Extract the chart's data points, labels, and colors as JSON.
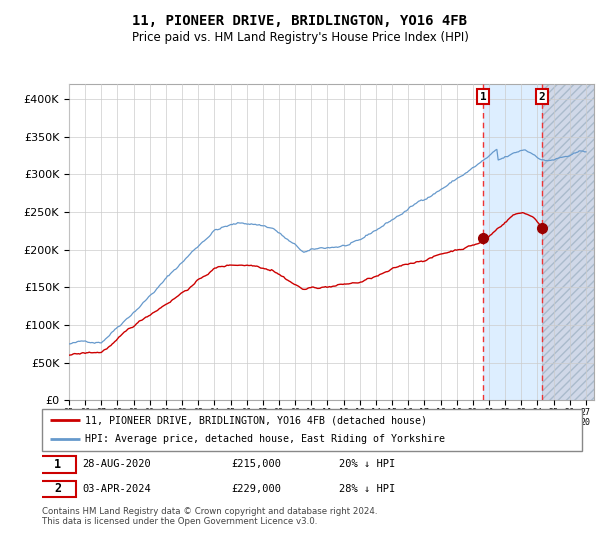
{
  "title": "11, PIONEER DRIVE, BRIDLINGTON, YO16 4FB",
  "subtitle": "Price paid vs. HM Land Registry's House Price Index (HPI)",
  "legend_line1": "11, PIONEER DRIVE, BRIDLINGTON, YO16 4FB (detached house)",
  "legend_line2": "HPI: Average price, detached house, East Riding of Yorkshire",
  "annotation1_date": "28-AUG-2020",
  "annotation1_price": "£215,000",
  "annotation1_hpi": "20% ↓ HPI",
  "annotation2_date": "03-APR-2024",
  "annotation2_price": "£229,000",
  "annotation2_hpi": "28% ↓ HPI",
  "footer": "Contains HM Land Registry data © Crown copyright and database right 2024.\nThis data is licensed under the Open Government Licence v3.0.",
  "hpi_color": "#6699cc",
  "price_color": "#cc0000",
  "dot_color": "#990000",
  "dashed_line_color": "#ee3333",
  "bg_highlight_color": "#ddeeff",
  "hatch_bg_color": "#d0d8e8",
  "grid_color": "#cccccc",
  "annotation_box_color": "#cc0000",
  "ylim": [
    0,
    420000
  ],
  "yticks": [
    0,
    50000,
    100000,
    150000,
    200000,
    250000,
    300000,
    350000,
    400000
  ],
  "xlim_start": 1995.0,
  "xlim_end": 2027.5,
  "highlight_start": 2020.65,
  "highlight_end": 2024.3,
  "hatch_start": 2024.3,
  "hatch_end": 2027.5,
  "point1_x": 2020.65,
  "point1_y": 215000,
  "point2_x": 2024.27,
  "point2_y": 229000,
  "xtick_years": [
    1995,
    1996,
    1997,
    1998,
    1999,
    2000,
    2001,
    2002,
    2003,
    2004,
    2005,
    2006,
    2007,
    2008,
    2009,
    2010,
    2011,
    2012,
    2013,
    2014,
    2015,
    2016,
    2017,
    2018,
    2019,
    2020,
    2021,
    2022,
    2023,
    2024,
    2025,
    2026,
    2027
  ]
}
